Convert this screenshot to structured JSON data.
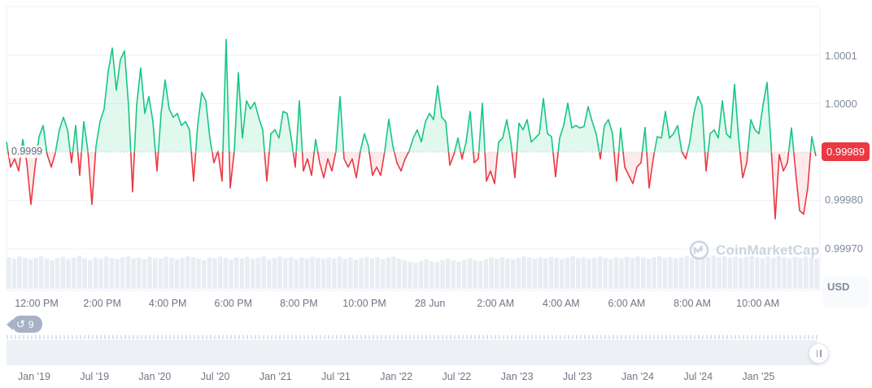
{
  "y_axis": {
    "ticks": [
      "1.0001",
      "1.0000",
      "0.99980",
      "0.99970"
    ],
    "current_price_label": "0.99989",
    "baseline_label": "0.9999",
    "currency_label": "USD"
  },
  "x_axis": {
    "labels": [
      "12:00 PM",
      "2:00 PM",
      "4:00 PM",
      "6:00 PM",
      "8:00 PM",
      "10:00 PM",
      "28 Jun",
      "2:00 AM",
      "4:00 AM",
      "6:00 AM",
      "8:00 AM",
      "10:00 AM"
    ]
  },
  "navigator": {
    "labels": [
      "Jan '19",
      "Jul '19",
      "Jan '20",
      "Jul '20",
      "Jan '21",
      "Jul '21",
      "Jan '22",
      "Jul '22",
      "Jan '23",
      "Jul '23",
      "Jan '24",
      "Jul '24",
      "Jan '25"
    ]
  },
  "history_badge": {
    "count": "9"
  },
  "watermark": {
    "text": "CoinMarketCap"
  },
  "colors": {
    "up": "#16c784",
    "up_fill": "rgba(22,199,132,0.13)",
    "down": "#ea3943",
    "down_fill": "rgba(234,57,67,0.10)",
    "grid": "#eff2f5",
    "baseline": "#b6bfce",
    "volume": "#e9edf3",
    "badge": "#ea3943"
  },
  "chart_data": {
    "type": "line",
    "title": "Stablecoin price (USD), ~24h window around 28 Jun",
    "ylabel": "USD",
    "baseline": 0.9999,
    "current_price": 0.99989,
    "y_ticks": [
      1.0001,
      1.0,
      0.9998,
      0.9997
    ],
    "ylim": [
      0.9997,
      1.00015
    ],
    "x_tick_labels": [
      "12:00 PM",
      "2:00 PM",
      "4:00 PM",
      "6:00 PM",
      "8:00 PM",
      "10:00 PM",
      "28 Jun",
      "2:00 AM",
      "4:00 AM",
      "6:00 AM",
      "8:00 AM",
      "10:00 AM"
    ],
    "grid": true,
    "legend": false,
    "prices": [
      0.999921,
      0.999869,
      0.999886,
      0.999861,
      0.999926,
      0.999878,
      0.999792,
      0.999869,
      0.999932,
      0.999955,
      0.999895,
      0.999869,
      0.999898,
      0.999946,
      0.999972,
      0.999946,
      0.999878,
      0.999955,
      0.999852,
      0.999963,
      0.999903,
      0.999792,
      0.999912,
      0.999963,
      0.999989,
      1.000066,
      1.000115,
      1.000028,
      1.000091,
      1.000109,
      0.999997,
      0.999818,
      0.999997,
      1.000074,
      0.99998,
      1.000015,
      0.999963,
      0.999861,
      0.99998,
      1.000049,
      0.999989,
      0.999972,
      0.99998,
      0.999955,
      0.999963,
      0.999946,
      0.99984,
      0.999955,
      1.000023,
      1.000006,
      0.999929,
      0.999878,
      0.999902,
      0.99984,
      1.000133,
      0.999826,
      0.999902,
      1.000064,
      0.999929,
      1.000006,
      0.999989,
      1.000003,
      0.999972,
      0.999946,
      0.99984,
      0.999938,
      0.999946,
      0.999929,
      0.999984,
      0.99998,
      0.999929,
      0.999869,
      1.000006,
      0.999861,
      0.999886,
      0.999852,
      0.999926,
      0.999878,
      0.999847,
      0.999886,
      0.999861,
      0.999902,
      1.000015,
      0.999886,
      0.999869,
      0.999886,
      0.999847,
      0.999902,
      0.999938,
      0.999912,
      0.999852,
      0.999869,
      0.999852,
      0.999902,
      0.999968,
      0.999912,
      0.999878,
      0.999861,
      0.999886,
      0.999902,
      0.999929,
      0.999946,
      0.999921,
      0.999963,
      0.99998,
      0.999967,
      1.000037,
      0.999972,
      0.999963,
      0.999873,
      0.999895,
      0.999929,
      0.999886,
      0.999921,
      0.999984,
      0.999878,
      0.999886,
      1.000001,
      0.99984,
      0.999861,
      0.999835,
      0.999921,
      0.999929,
      0.999967,
      0.999921,
      0.999847,
      0.99996,
      0.999946,
      0.999967,
      0.999921,
      0.999929,
      0.999938,
      1.000011,
      0.999938,
      0.999932,
      0.999849,
      0.999929,
      0.999955,
      1.000001,
      0.99995,
      0.999955,
      0.99995,
      0.999953,
      0.999994,
      0.999963,
      0.999938,
      0.999886,
      0.999955,
      0.999967,
      0.999938,
      0.99984,
      0.99995,
      0.999869,
      0.999852,
      0.999835,
      0.999869,
      0.999878,
      0.999951,
      0.999826,
      0.999886,
      0.999932,
      0.999929,
      0.999984,
      0.999929,
      0.999938,
      0.999955,
      0.999902,
      0.999886,
      0.999921,
      0.99998,
      1.000015,
      0.999997,
      0.999861,
      0.999938,
      0.999946,
      0.999929,
      1.000006,
      0.999938,
      0.999929,
      1.00004,
      0.999929,
      0.999847,
      0.999878,
      0.999967,
      0.999946,
      0.999938,
      0.999997,
      1.000044,
      0.999912,
      0.999762,
      0.999895,
      0.999861,
      0.999878,
      0.99995,
      0.999861,
      0.999779,
      0.999772,
      0.999826,
      0.999932,
      0.999892
    ],
    "volume_relative": [
      0.88,
      0.84,
      0.9,
      0.86,
      0.82,
      0.87,
      0.91,
      0.85,
      0.8,
      0.86,
      0.89,
      0.83,
      0.87,
      0.92,
      0.85,
      0.81,
      0.88,
      0.84,
      0.9,
      0.86,
      0.83,
      0.88,
      0.91,
      0.85,
      0.87,
      0.82,
      0.89,
      0.86,
      0.84,
      0.9,
      0.87,
      0.83,
      0.86,
      0.91,
      0.88,
      0.84,
      0.8,
      0.87,
      0.85,
      0.9,
      0.86,
      0.82,
      0.88,
      0.85,
      0.89,
      0.84,
      0.87,
      0.91,
      0.83,
      0.86,
      0.9,
      0.85,
      0.88,
      0.82,
      0.87,
      0.84,
      0.89,
      0.86,
      0.83,
      0.88,
      0.85,
      0.9,
      0.84,
      0.87,
      0.82,
      0.86,
      0.89,
      0.85,
      0.88,
      0.83,
      0.87,
      0.9,
      0.84,
      0.8,
      0.76,
      0.74,
      0.78,
      0.82,
      0.77,
      0.75,
      0.8,
      0.84,
      0.79,
      0.76,
      0.81,
      0.85,
      0.8,
      0.77,
      0.83,
      0.87,
      0.84,
      0.88,
      0.85,
      0.82,
      0.86,
      0.9,
      0.87,
      0.84,
      0.88,
      0.85,
      0.89,
      0.86,
      0.83,
      0.87,
      0.91,
      0.85,
      0.88,
      0.84,
      0.87,
      0.9,
      0.86,
      0.83,
      0.88,
      0.85,
      0.89,
      0.86,
      0.9,
      0.87,
      0.84,
      0.88,
      0.91,
      0.86,
      0.89,
      0.85,
      0.88,
      0.92,
      0.87,
      0.9,
      0.86,
      0.89,
      0.93,
      0.88,
      0.91,
      0.87,
      0.9,
      0.86,
      0.89,
      0.92,
      0.88,
      0.85,
      0.9,
      0.87,
      0.91,
      0.88,
      0.85,
      0.89,
      0.86,
      0.9,
      0.87,
      0.84
    ]
  }
}
